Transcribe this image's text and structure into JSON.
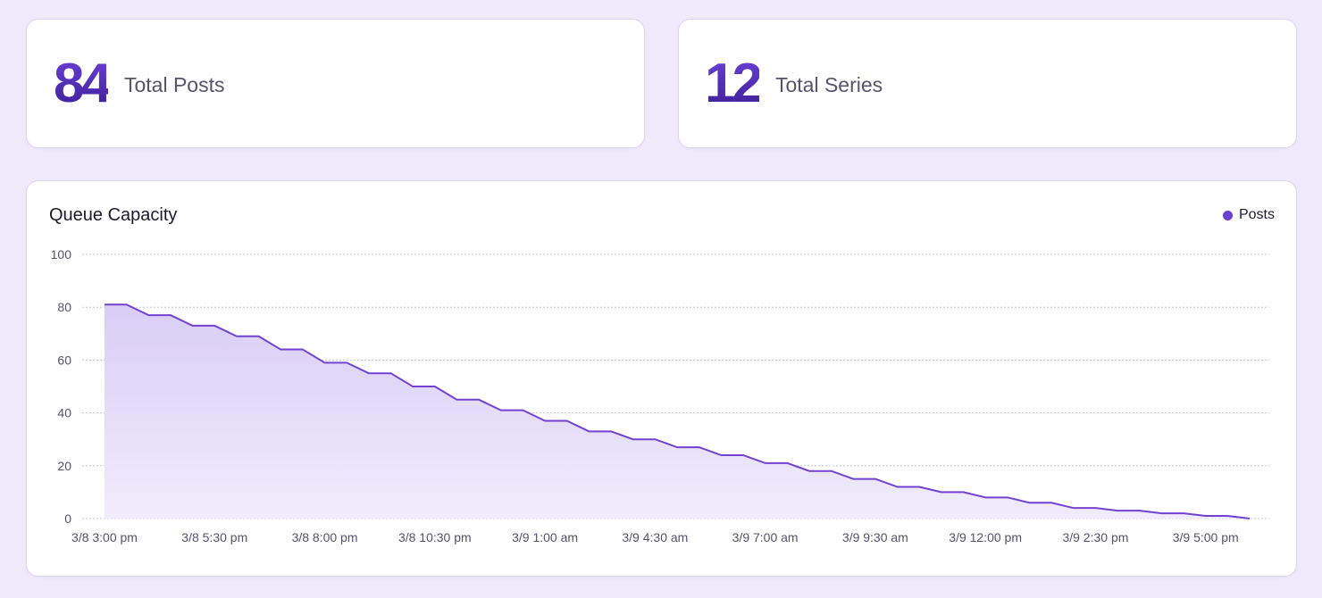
{
  "stats": {
    "posts": {
      "value": "84",
      "label": "Total Posts"
    },
    "series": {
      "value": "12",
      "label": "Total Series"
    }
  },
  "colors": {
    "accent": "#6d3fd0",
    "line": "#7442d2",
    "grid": "#c9c6d3"
  },
  "chart_data": {
    "type": "area",
    "title": "Queue Capacity",
    "legend": [
      "Posts"
    ],
    "legend_position": "top-right",
    "xlabel": "",
    "ylabel": "",
    "ylim": [
      0,
      100
    ],
    "yticks": [
      "0",
      "20",
      "40",
      "60",
      "80",
      "100"
    ],
    "grid": true,
    "x_tick_labels": [
      "3/8 3:00 pm",
      "3/8 5:30 pm",
      "3/8 8:00 pm",
      "3/8 10:30 pm",
      "3/9 1:00 am",
      "3/9 4:30 am",
      "3/9 7:00 am",
      "3/9 9:30 am",
      "3/9 12:00 pm",
      "3/9 2:30 pm",
      "3/9 5:00 pm"
    ],
    "series": [
      {
        "name": "Posts",
        "values": [
          81,
          81,
          77,
          77,
          73,
          73,
          69,
          69,
          64,
          64,
          59,
          59,
          55,
          55,
          50,
          50,
          45,
          45,
          41,
          41,
          37,
          37,
          33,
          33,
          30,
          30,
          27,
          27,
          24,
          24,
          21,
          21,
          18,
          18,
          15,
          15,
          12,
          12,
          10,
          10,
          8,
          8,
          6,
          6,
          4,
          4,
          3,
          3,
          2,
          2,
          1,
          1,
          0
        ]
      }
    ]
  }
}
